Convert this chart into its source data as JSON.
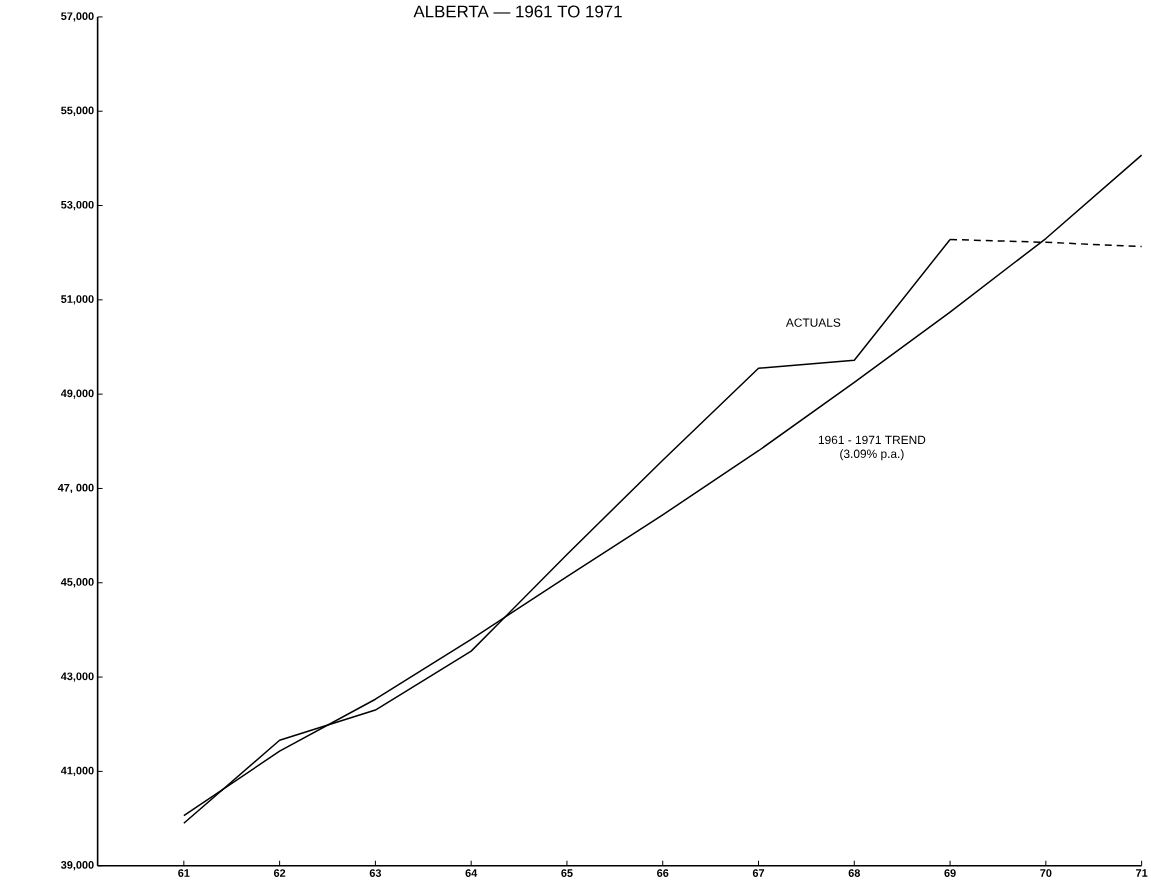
{
  "chart_data": {
    "type": "line",
    "title": "ALBERTA — 1961 TO 1971",
    "x": [
      61,
      62,
      63,
      64,
      65,
      66,
      67,
      68,
      69,
      70,
      71
    ],
    "xlim": [
      60.1,
      71
    ],
    "xticks": [
      61,
      62,
      63,
      64,
      65,
      66,
      67,
      68,
      69,
      70,
      71
    ],
    "ylim": [
      39000,
      57000
    ],
    "yticks": [
      {
        "value": 39000,
        "label": "39,000"
      },
      {
        "value": 41000,
        "label": "41,000"
      },
      {
        "value": 43000,
        "label": "43,000"
      },
      {
        "value": 45000,
        "label": "45,000"
      },
      {
        "value": 47000,
        "label": "47, 000"
      },
      {
        "value": 49000,
        "label": "49,000"
      },
      {
        "value": 51000,
        "label": "51,000"
      },
      {
        "value": 53000,
        "label": "53,000"
      },
      {
        "value": 55000,
        "label": "55,000"
      },
      {
        "value": 57000,
        "label": "57,000"
      }
    ],
    "series": [
      {
        "name": "ACTUALS",
        "color": "#000000",
        "x": [
          61,
          62,
          63,
          64,
          65,
          66,
          67,
          68,
          69
        ],
        "values": [
          39900,
          41660,
          42300,
          43550,
          45600,
          47600,
          49550,
          49720,
          52280
        ]
      },
      {
        "color": "#000000",
        "line_style": "dashed",
        "x": [
          69,
          70,
          71
        ],
        "values": [
          52280,
          52220,
          52130
        ]
      },
      {
        "name": "1961 - 1971 TREND",
        "color": "#000000",
        "values": [
          40060,
          41430,
          42530,
          43800,
          45130,
          46440,
          47800,
          49250,
          50740,
          52300,
          54070
        ]
      }
    ],
    "annotations": [
      "(3.09% p.a.)"
    ],
    "marker": "none",
    "line_style": "solid",
    "grid": false,
    "legend": false
  }
}
